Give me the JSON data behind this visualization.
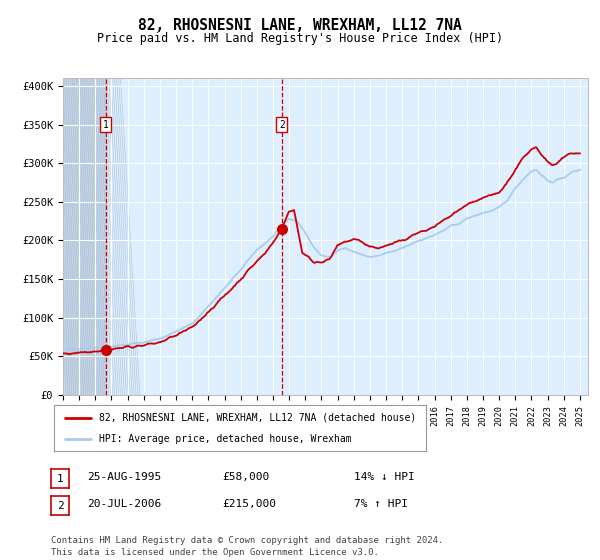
{
  "title": "82, RHOSNESNI LANE, WREXHAM, LL12 7NA",
  "subtitle": "Price paid vs. HM Land Registry's House Price Index (HPI)",
  "legend_line1": "82, RHOSNESNI LANE, WREXHAM, LL12 7NA (detached house)",
  "legend_line2": "HPI: Average price, detached house, Wrexham",
  "annotation1_date": "25-AUG-1995",
  "annotation1_price": "£58,000",
  "annotation1_hpi": "14% ↓ HPI",
  "annotation2_date": "20-JUL-2006",
  "annotation2_price": "£215,000",
  "annotation2_hpi": "7% ↑ HPI",
  "footer": "Contains HM Land Registry data © Crown copyright and database right 2024.\nThis data is licensed under the Open Government Licence v3.0.",
  "hpi_color": "#aaccee",
  "price_color": "#cc0000",
  "plot_bg_color": "#ddeeff",
  "grid_color": "#ffffff",
  "ylim": [
    0,
    410000
  ],
  "yticks": [
    0,
    50000,
    100000,
    150000,
    200000,
    250000,
    300000,
    350000,
    400000
  ],
  "ytick_labels": [
    "£0",
    "£50K",
    "£100K",
    "£150K",
    "£200K",
    "£250K",
    "£300K",
    "£350K",
    "£400K"
  ],
  "sale1_x": 1995.646,
  "sale1_y": 58000,
  "sale2_x": 2006.546,
  "sale2_y": 215000,
  "xmin": 1993.0,
  "xmax": 2025.5
}
